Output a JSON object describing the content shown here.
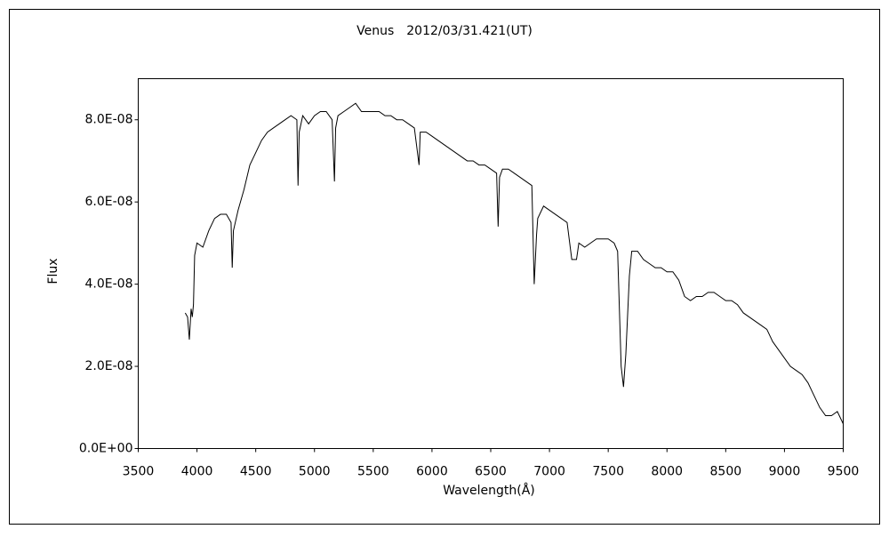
{
  "chart_data": {
    "type": "line",
    "title": "Venus　2012/03/31.421(UT)",
    "x_label": "Wavelength(Å)",
    "y_label": "Flux",
    "color": "#000000",
    "xlim": [
      3500,
      9500
    ],
    "xticks": [
      3500,
      4000,
      4500,
      5000,
      5500,
      6000,
      6500,
      7000,
      7500,
      8000,
      8500,
      9000,
      9500
    ],
    "ylim": [
      0,
      9e-08
    ],
    "yticks": [
      {
        "value": 0,
        "label": "0.0E+00"
      },
      {
        "value": 2e-08,
        "label": "2.0E-08"
      },
      {
        "value": 4e-08,
        "label": "4.0E-08"
      },
      {
        "value": 6e-08,
        "label": "6.0E-08"
      },
      {
        "value": 8e-08,
        "label": "8.0E-08"
      }
    ],
    "x": [
      3900,
      3920,
      3935,
      3950,
      3960,
      3970,
      3980,
      4000,
      4050,
      4100,
      4150,
      4200,
      4250,
      4290,
      4300,
      4310,
      4350,
      4400,
      4450,
      4500,
      4550,
      4600,
      4650,
      4700,
      4750,
      4800,
      4850,
      4860,
      4870,
      4900,
      4950,
      5000,
      5050,
      5100,
      5150,
      5170,
      5180,
      5200,
      5250,
      5300,
      5350,
      5400,
      5450,
      5500,
      5550,
      5600,
      5650,
      5700,
      5750,
      5800,
      5850,
      5890,
      5900,
      5950,
      6000,
      6050,
      6100,
      6150,
      6200,
      6250,
      6300,
      6350,
      6400,
      6450,
      6500,
      6550,
      6563,
      6575,
      6600,
      6650,
      6700,
      6750,
      6800,
      6850,
      6870,
      6890,
      6900,
      6950,
      7000,
      7050,
      7100,
      7150,
      7190,
      7230,
      7250,
      7300,
      7350,
      7400,
      7450,
      7500,
      7550,
      7580,
      7610,
      7630,
      7650,
      7680,
      7700,
      7750,
      7800,
      7850,
      7900,
      7950,
      8000,
      8050,
      8100,
      8150,
      8200,
      8250,
      8300,
      8350,
      8400,
      8450,
      8500,
      8550,
      8600,
      8650,
      8700,
      8750,
      8800,
      8850,
      8900,
      8950,
      9000,
      9050,
      9100,
      9150,
      9200,
      9250,
      9300,
      9350,
      9400,
      9450,
      9500
    ],
    "values": [
      3.3e-08,
      3.2e-08,
      2.65e-08,
      3.4e-08,
      3.2e-08,
      3.5e-08,
      4.7e-08,
      5e-08,
      4.9e-08,
      5.3e-08,
      5.6e-08,
      5.7e-08,
      5.7e-08,
      5.5e-08,
      4.4e-08,
      5.3e-08,
      5.8e-08,
      6.3e-08,
      6.9e-08,
      7.2e-08,
      7.5e-08,
      7.7e-08,
      7.8e-08,
      7.9e-08,
      8e-08,
      8.1e-08,
      8e-08,
      6.4e-08,
      7.7e-08,
      8.1e-08,
      7.9e-08,
      8.1e-08,
      8.2e-08,
      8.2e-08,
      8e-08,
      6.5e-08,
      7.8e-08,
      8.1e-08,
      8.2e-08,
      8.3e-08,
      8.4e-08,
      8.2e-08,
      8.2e-08,
      8.2e-08,
      8.2e-08,
      8.1e-08,
      8.1e-08,
      8e-08,
      8e-08,
      7.9e-08,
      7.8e-08,
      6.9e-08,
      7.7e-08,
      7.7e-08,
      7.6e-08,
      7.5e-08,
      7.4e-08,
      7.3e-08,
      7.2e-08,
      7.1e-08,
      7e-08,
      7e-08,
      6.9e-08,
      6.9e-08,
      6.8e-08,
      6.7e-08,
      5.4e-08,
      6.6e-08,
      6.8e-08,
      6.8e-08,
      6.7e-08,
      6.6e-08,
      6.5e-08,
      6.4e-08,
      4e-08,
      5.2e-08,
      5.6e-08,
      5.9e-08,
      5.8e-08,
      5.7e-08,
      5.6e-08,
      5.5e-08,
      4.6e-08,
      4.6e-08,
      5e-08,
      4.9e-08,
      5e-08,
      5.1e-08,
      5.1e-08,
      5.1e-08,
      5e-08,
      4.8e-08,
      2e-08,
      1.5e-08,
      2.3e-08,
      4.2e-08,
      4.8e-08,
      4.8e-08,
      4.6e-08,
      4.5e-08,
      4.4e-08,
      4.4e-08,
      4.3e-08,
      4.3e-08,
      4.1e-08,
      3.7e-08,
      3.6e-08,
      3.7e-08,
      3.7e-08,
      3.8e-08,
      3.8e-08,
      3.7e-08,
      3.6e-08,
      3.6e-08,
      3.5e-08,
      3.3e-08,
      3.2e-08,
      3.1e-08,
      3e-08,
      2.9e-08,
      2.6e-08,
      2.4e-08,
      2.2e-08,
      2e-08,
      1.9e-08,
      1.8e-08,
      1.6e-08,
      1.3e-08,
      1e-08,
      8e-09,
      8e-09,
      9e-09,
      6e-09
    ]
  }
}
